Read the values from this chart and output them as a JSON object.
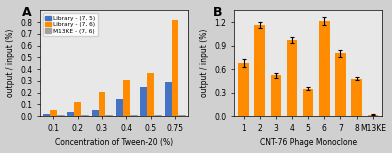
{
  "panel_A": {
    "concentrations": [
      0.1,
      0.2,
      0.3,
      0.4,
      0.5,
      0.75
    ],
    "library_75": [
      0.02,
      0.04,
      0.05,
      0.15,
      0.25,
      0.29
    ],
    "library_76": [
      0.05,
      0.12,
      0.21,
      0.31,
      0.37,
      0.82
    ],
    "m13ke_76": [
      0.01,
      0.01,
      0.01,
      0.01,
      0.01,
      0.01
    ],
    "color_75": "#4472C4",
    "color_76": "#FF8C00",
    "color_m13ke": "#A0A0A0",
    "ylabel": "output / input (%)",
    "xlabel": "Concentration of Tween-20 (%)",
    "ylim": [
      0,
      0.9
    ],
    "yticks": [
      0.0,
      0.1,
      0.2,
      0.3,
      0.4,
      0.5,
      0.6,
      0.7,
      0.8
    ],
    "legend_labels": [
      "Library - (7, 5)",
      "Library - (7, 6)",
      "M13KE - (7, 6)"
    ],
    "panel_label": "A"
  },
  "panel_B": {
    "clones": [
      "1",
      "2",
      "3",
      "4",
      "5",
      "6",
      "7",
      "8",
      "M13KE"
    ],
    "values": [
      0.68,
      1.16,
      0.52,
      0.97,
      0.35,
      1.21,
      0.8,
      0.48,
      0.02
    ],
    "errors": [
      0.05,
      0.04,
      0.03,
      0.04,
      0.02,
      0.05,
      0.04,
      0.02,
      0.005
    ],
    "color": "#FF8C00",
    "ylabel": "output / input (%)",
    "xlabel": "CNT-76 Phage Monoclone",
    "ylim": [
      0,
      1.35
    ],
    "yticks": [
      0.0,
      0.3,
      0.6,
      0.9,
      1.2
    ],
    "panel_label": "B"
  },
  "background_color": "#E8E8E8",
  "figure_facecolor": "#D0D0D0"
}
